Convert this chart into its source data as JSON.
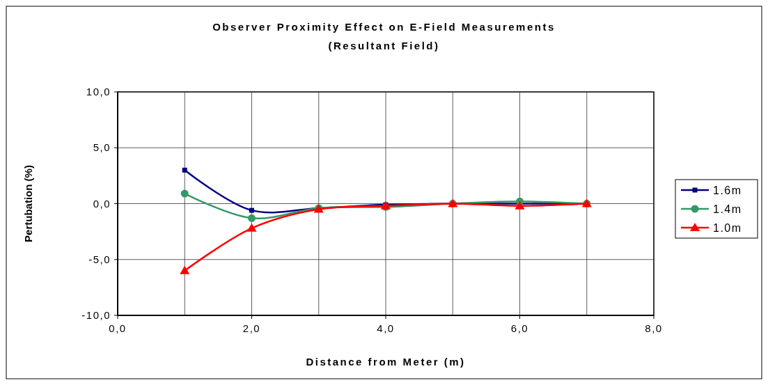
{
  "chart_data": {
    "type": "line",
    "title": "Observer Proximity Effect on E-Field Measurements",
    "subtitle": "(Resultant Field)",
    "xlabel": "Distance from Meter (m)",
    "ylabel": "Pertubation (%)",
    "x": [
      1,
      2,
      3,
      4,
      5,
      6,
      7
    ],
    "series": [
      {
        "name": "1.6m",
        "color": "#000080",
        "marker": "square",
        "values": [
          3.0,
          -0.6,
          -0.4,
          -0.1,
          0,
          0,
          0
        ]
      },
      {
        "name": "1.4m",
        "color": "#339966",
        "marker": "circle",
        "values": [
          0.9,
          -1.3,
          -0.4,
          -0.3,
          0,
          0.2,
          0
        ]
      },
      {
        "name": "1.0m",
        "color": "#ff0000",
        "marker": "triangle",
        "values": [
          -6.0,
          -2.2,
          -0.5,
          -0.2,
          0,
          -0.2,
          0
        ]
      }
    ],
    "xlim": [
      0,
      8
    ],
    "xticks": [
      {
        "value": 0,
        "label": "0,0"
      },
      {
        "value": 2,
        "label": "2,0"
      },
      {
        "value": 4,
        "label": "4,0"
      },
      {
        "value": 6,
        "label": "6,0"
      },
      {
        "value": 8,
        "label": "8,0"
      }
    ],
    "ylim": [
      -10,
      10
    ],
    "yticks": [
      {
        "value": -10,
        "label": "-10,0"
      },
      {
        "value": -5,
        "label": "-5,0"
      },
      {
        "value": 0,
        "label": "0,0"
      },
      {
        "value": 5,
        "label": "5,0"
      },
      {
        "value": 10,
        "label": "10,0"
      }
    ],
    "grid": true,
    "legend": "right",
    "line_style": "solid"
  }
}
